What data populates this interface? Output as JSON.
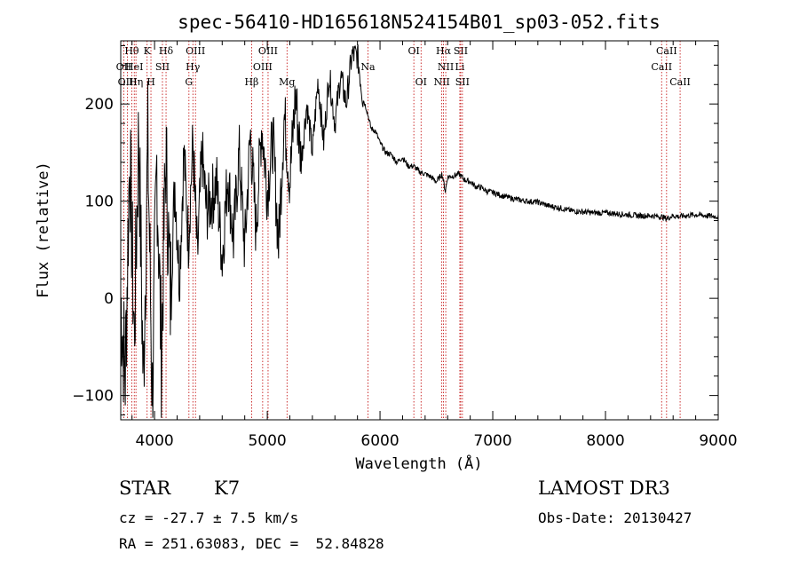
{
  "title": "spec-56410-HD165618N524154B01_sp03-052.fits",
  "footer": {
    "classification": "STAR",
    "subclass": "K7",
    "cz": "cz = -27.7 ± 7.5 km/s",
    "coords": "RA = 251.63083, DEC =  52.84828",
    "survey": "LAMOST DR3",
    "obs_date": "Obs-Date: 20130427"
  },
  "chart_data": {
    "type": "line",
    "title": "spec-56410-HD165618N524154B01_sp03-052.fits",
    "xlabel": "Wavelength (Å)",
    "ylabel": "Flux (relative)",
    "xlim": [
      3700,
      9000
    ],
    "ylim": [
      -125,
      265
    ],
    "xticks": [
      4000,
      5000,
      6000,
      7000,
      8000,
      9000
    ],
    "yticks": [
      -100,
      0,
      100,
      200
    ],
    "series": [
      {
        "name": "spectrum",
        "x": [
          3700,
          3740,
          3780,
          3820,
          3860,
          3900,
          3940,
          3980,
          4020,
          4060,
          4100,
          4140,
          4180,
          4220,
          4260,
          4300,
          4340,
          4380,
          4420,
          4460,
          4500,
          4550,
          4600,
          4650,
          4700,
          4750,
          4800,
          4850,
          4900,
          4950,
          5000,
          5050,
          5100,
          5150,
          5200,
          5250,
          5300,
          5350,
          5400,
          5450,
          5500,
          5550,
          5600,
          5650,
          5700,
          5750,
          5800,
          5850,
          5880,
          5920,
          5960,
          6000,
          6050,
          6100,
          6150,
          6200,
          6250,
          6300,
          6350,
          6400,
          6450,
          6500,
          6550,
          6580,
          6600,
          6650,
          6700,
          6750,
          6800,
          6850,
          6900,
          6950,
          7000,
          7100,
          7200,
          7300,
          7400,
          7500,
          7600,
          7700,
          7800,
          7900,
          8000,
          8100,
          8200,
          8300,
          8400,
          8500,
          8540,
          8600,
          8660,
          8700,
          8800,
          8900,
          9000
        ],
        "y": [
          0,
          -80,
          150,
          -40,
          175,
          -90,
          160,
          -100,
          140,
          -60,
          150,
          0,
          120,
          20,
          150,
          60,
          160,
          40,
          150,
          90,
          100,
          120,
          40,
          130,
          60,
          150,
          50,
          170,
          70,
          180,
          110,
          165,
          55,
          190,
          120,
          210,
          140,
          200,
          150,
          225,
          160,
          230,
          180,
          230,
          200,
          250,
          250,
          205,
          195,
          175,
          172,
          160,
          150,
          148,
          140,
          145,
          136,
          136,
          130,
          128,
          125,
          120,
          128,
          110,
          125,
          126,
          128,
          122,
          120,
          115,
          114,
          110,
          109,
          105,
          102,
          100,
          99,
          95,
          93,
          90,
          89,
          88,
          88,
          87,
          86,
          85,
          85,
          84,
          82,
          85,
          84,
          85,
          86,
          85,
          84
        ]
      }
    ],
    "lines": [
      {
        "label": "Hθ",
        "wl": 3798,
        "row": 0
      },
      {
        "label": "OII",
        "wl": 3727,
        "row": 1
      },
      {
        "label": "OIII",
        "wl": 3760,
        "row": 2
      },
      {
        "label": "HeI",
        "wl": 3820,
        "row": 1
      },
      {
        "label": "Hη",
        "wl": 3835,
        "row": 2
      },
      {
        "label": "K",
        "wl": 3934,
        "row": 0
      },
      {
        "label": "H",
        "wl": 3968,
        "row": 2
      },
      {
        "label": "SII",
        "wl": 4070,
        "row": 1
      },
      {
        "label": "Hδ",
        "wl": 4102,
        "row": 0
      },
      {
        "label": "OIII",
        "wl": 4363,
        "row": 0
      },
      {
        "label": "Hγ",
        "wl": 4340,
        "row": 1
      },
      {
        "label": "G",
        "wl": 4305,
        "row": 2
      },
      {
        "label": "Hβ",
        "wl": 4861,
        "row": 2
      },
      {
        "label": "OIII",
        "wl": 4959,
        "row": 1
      },
      {
        "label": "OIII",
        "wl": 5007,
        "row": 0
      },
      {
        "label": "Mg",
        "wl": 5175,
        "row": 2
      },
      {
        "label": "Na",
        "wl": 5893,
        "row": 1
      },
      {
        "label": "OI",
        "wl": 6300,
        "row": 0
      },
      {
        "label": "OI",
        "wl": 6364,
        "row": 2
      },
      {
        "label": "NII",
        "wl": 6548,
        "row": 2
      },
      {
        "label": "Hα",
        "wl": 6563,
        "row": 0
      },
      {
        "label": "NII",
        "wl": 6583,
        "row": 1
      },
      {
        "label": "Li",
        "wl": 6708,
        "row": 1
      },
      {
        "label": "SII",
        "wl": 6716,
        "row": 0
      },
      {
        "label": "SII",
        "wl": 6731,
        "row": 2
      },
      {
        "label": "CaII",
        "wl": 8498,
        "row": 1
      },
      {
        "label": "CaII",
        "wl": 8542,
        "row": 0
      },
      {
        "label": "CaII",
        "wl": 8662,
        "row": 2
      }
    ]
  }
}
